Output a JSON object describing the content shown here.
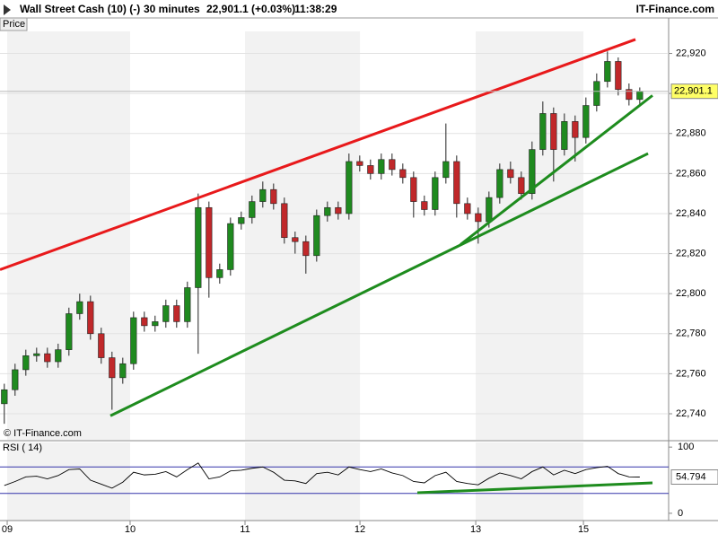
{
  "header": {
    "instrument": "Wall Street Cash (10) (-)",
    "timeframe": "30 minutes",
    "quote": "22,901.1 (+0.03%)",
    "time": "11:38:29",
    "brand": "IT-Finance.com"
  },
  "chart_data": [
    {
      "type": "candlestick",
      "title": "Price",
      "watermark": "© IT-Finance.com",
      "x": [
        0,
        1,
        2,
        3,
        4,
        5,
        6,
        7,
        8,
        9,
        10,
        11,
        12,
        13,
        14,
        15,
        16,
        17,
        18,
        19,
        20,
        21,
        22,
        23,
        24,
        25,
        26,
        27,
        28,
        29,
        30,
        31,
        32,
        33,
        34,
        35,
        36,
        37,
        38,
        39,
        40,
        41,
        42,
        43,
        44,
        45,
        46,
        47,
        48,
        49,
        50,
        51,
        52,
        53,
        54,
        55,
        56,
        57,
        58,
        59
      ],
      "open": [
        22745,
        22752,
        22762,
        22769,
        22770,
        22766,
        22772,
        22790,
        22796,
        22780,
        22768,
        22758,
        22765,
        22788,
        22784,
        22786,
        22794,
        22786,
        22803,
        22843,
        22808,
        22812,
        22835,
        22838,
        22846,
        22852,
        22845,
        22828,
        22826,
        22819,
        22839,
        22843,
        22840,
        22866,
        22864,
        22860,
        22867,
        22862,
        22858,
        22846,
        22842,
        22858,
        22866,
        22845,
        22840,
        22836,
        22848,
        22862,
        22858,
        22850,
        22872,
        22890,
        22872,
        22886,
        22878,
        22894,
        22906,
        22916,
        22902,
        22897
      ],
      "high": [
        22755,
        22765,
        22772,
        22773,
        22773,
        22775,
        22793,
        22800,
        22799,
        22783,
        22771,
        22768,
        22791,
        22791,
        22789,
        22797,
        22797,
        22806,
        22850,
        22846,
        22815,
        22838,
        22841,
        22849,
        22856,
        22855,
        22848,
        22831,
        22829,
        22842,
        22846,
        22846,
        22870,
        22869,
        22867,
        22870,
        22870,
        22865,
        22861,
        22849,
        22861,
        22885,
        22869,
        22848,
        22843,
        22851,
        22865,
        22866,
        22861,
        22876,
        22896,
        22893,
        22890,
        22889,
        22898,
        22910,
        22921,
        22918,
        22905,
        22903
      ],
      "low": [
        22735,
        22749,
        22759,
        22766,
        22763,
        22763,
        22769,
        22787,
        22777,
        22765,
        22742,
        22755,
        22762,
        22781,
        22781,
        22783,
        22783,
        22783,
        22770,
        22798,
        22805,
        22809,
        22832,
        22835,
        22843,
        22842,
        22825,
        22820,
        22810,
        22816,
        22836,
        22837,
        22837,
        22861,
        22857,
        22857,
        22859,
        22855,
        22838,
        22839,
        22839,
        22855,
        22838,
        22837,
        22825,
        22833,
        22845,
        22855,
        22847,
        22847,
        22869,
        22856,
        22869,
        22866,
        22875,
        22891,
        22903,
        22899,
        22894,
        22894
      ],
      "close": [
        22752,
        22762,
        22769,
        22770,
        22766,
        22772,
        22790,
        22796,
        22780,
        22768,
        22758,
        22765,
        22788,
        22784,
        22786,
        22794,
        22786,
        22803,
        22843,
        22808,
        22812,
        22835,
        22838,
        22846,
        22852,
        22845,
        22828,
        22826,
        22819,
        22839,
        22843,
        22840,
        22866,
        22864,
        22860,
        22867,
        22862,
        22858,
        22846,
        22842,
        22858,
        22866,
        22845,
        22840,
        22836,
        22848,
        22862,
        22858,
        22850,
        22872,
        22890,
        22872,
        22886,
        22878,
        22894,
        22906,
        22916,
        22902,
        22897,
        22901.1
      ],
      "up_color": "#1f8a1f",
      "down_color": "#c0282a",
      "xlim": [
        -0.4,
        61.68
      ],
      "xticks": [
        {
          "value": 0.27,
          "label": "09"
        },
        {
          "value": 11.68,
          "label": "10"
        },
        {
          "value": 22.35,
          "label": "11"
        },
        {
          "value": 33.02,
          "label": "12"
        },
        {
          "value": 43.77,
          "label": "13"
        },
        {
          "value": 53.77,
          "label": "15"
        }
      ],
      "ylim": [
        22727,
        22931
      ],
      "yticks": [
        {
          "value": 22740,
          "label": "22,740"
        },
        {
          "value": 22760,
          "label": "22,760"
        },
        {
          "value": 22780,
          "label": "22,780"
        },
        {
          "value": 22800,
          "label": "22,800"
        },
        {
          "value": 22820,
          "label": "22,820"
        },
        {
          "value": 22840,
          "label": "22,840"
        },
        {
          "value": 22860,
          "label": "22,860"
        },
        {
          "value": 22880,
          "label": "22,880"
        },
        {
          "value": 22900,
          "label": "22,900"
        },
        {
          "value": 22920,
          "label": "22,920"
        }
      ],
      "grid": true,
      "last_value": {
        "value": 22901.1,
        "label": "22,901.1"
      },
      "trendlines": [
        {
          "color": "#e8191b",
          "x": [
            -0.4,
            58.6
          ],
          "values": [
            22812,
            22927
          ]
        },
        {
          "color": "#1e8c1e",
          "x": [
            9.85,
            59.77
          ],
          "values": [
            22739,
            22870
          ]
        },
        {
          "color": "#1e8c1e",
          "x": [
            42.35,
            60.18
          ],
          "values": [
            22824.5,
            22899
          ]
        }
      ]
    },
    {
      "type": "line",
      "title": "RSI ( 14)",
      "color": "#000000",
      "x": [
        0,
        1,
        2,
        3,
        4,
        5,
        6,
        7,
        8,
        9,
        10,
        11,
        12,
        13,
        14,
        15,
        16,
        17,
        18,
        19,
        20,
        21,
        22,
        23,
        24,
        25,
        26,
        27,
        28,
        29,
        30,
        31,
        32,
        33,
        34,
        35,
        36,
        37,
        38,
        39,
        40,
        41,
        42,
        43,
        44,
        45,
        46,
        47,
        48,
        49,
        50,
        51,
        52,
        53,
        54,
        55,
        56,
        57,
        58,
        59
      ],
      "values": [
        42,
        48,
        55,
        56,
        52,
        57,
        66,
        67,
        50,
        44,
        38,
        47,
        62,
        58,
        59,
        63,
        55,
        66,
        76,
        52,
        55,
        64,
        65,
        68,
        70,
        62,
        50,
        49,
        45,
        60,
        62,
        58,
        70,
        66,
        63,
        67,
        61,
        57,
        48,
        46,
        57,
        62,
        48,
        45,
        43,
        53,
        61,
        57,
        52,
        63,
        70,
        58,
        65,
        60,
        66,
        69,
        71,
        60,
        55,
        54.794
      ],
      "xlim": [
        -0.4,
        61.68
      ],
      "ylim": [
        -11,
        107
      ],
      "yticks": [
        0,
        100
      ],
      "levels": [
        70,
        30
      ],
      "level_color": "#3333aa",
      "last_value": 54.794,
      "trendlines": [
        {
          "color": "#1e8c1e",
          "x": [
            38.35,
            60.18
          ],
          "values": [
            31,
            46
          ]
        }
      ]
    }
  ]
}
